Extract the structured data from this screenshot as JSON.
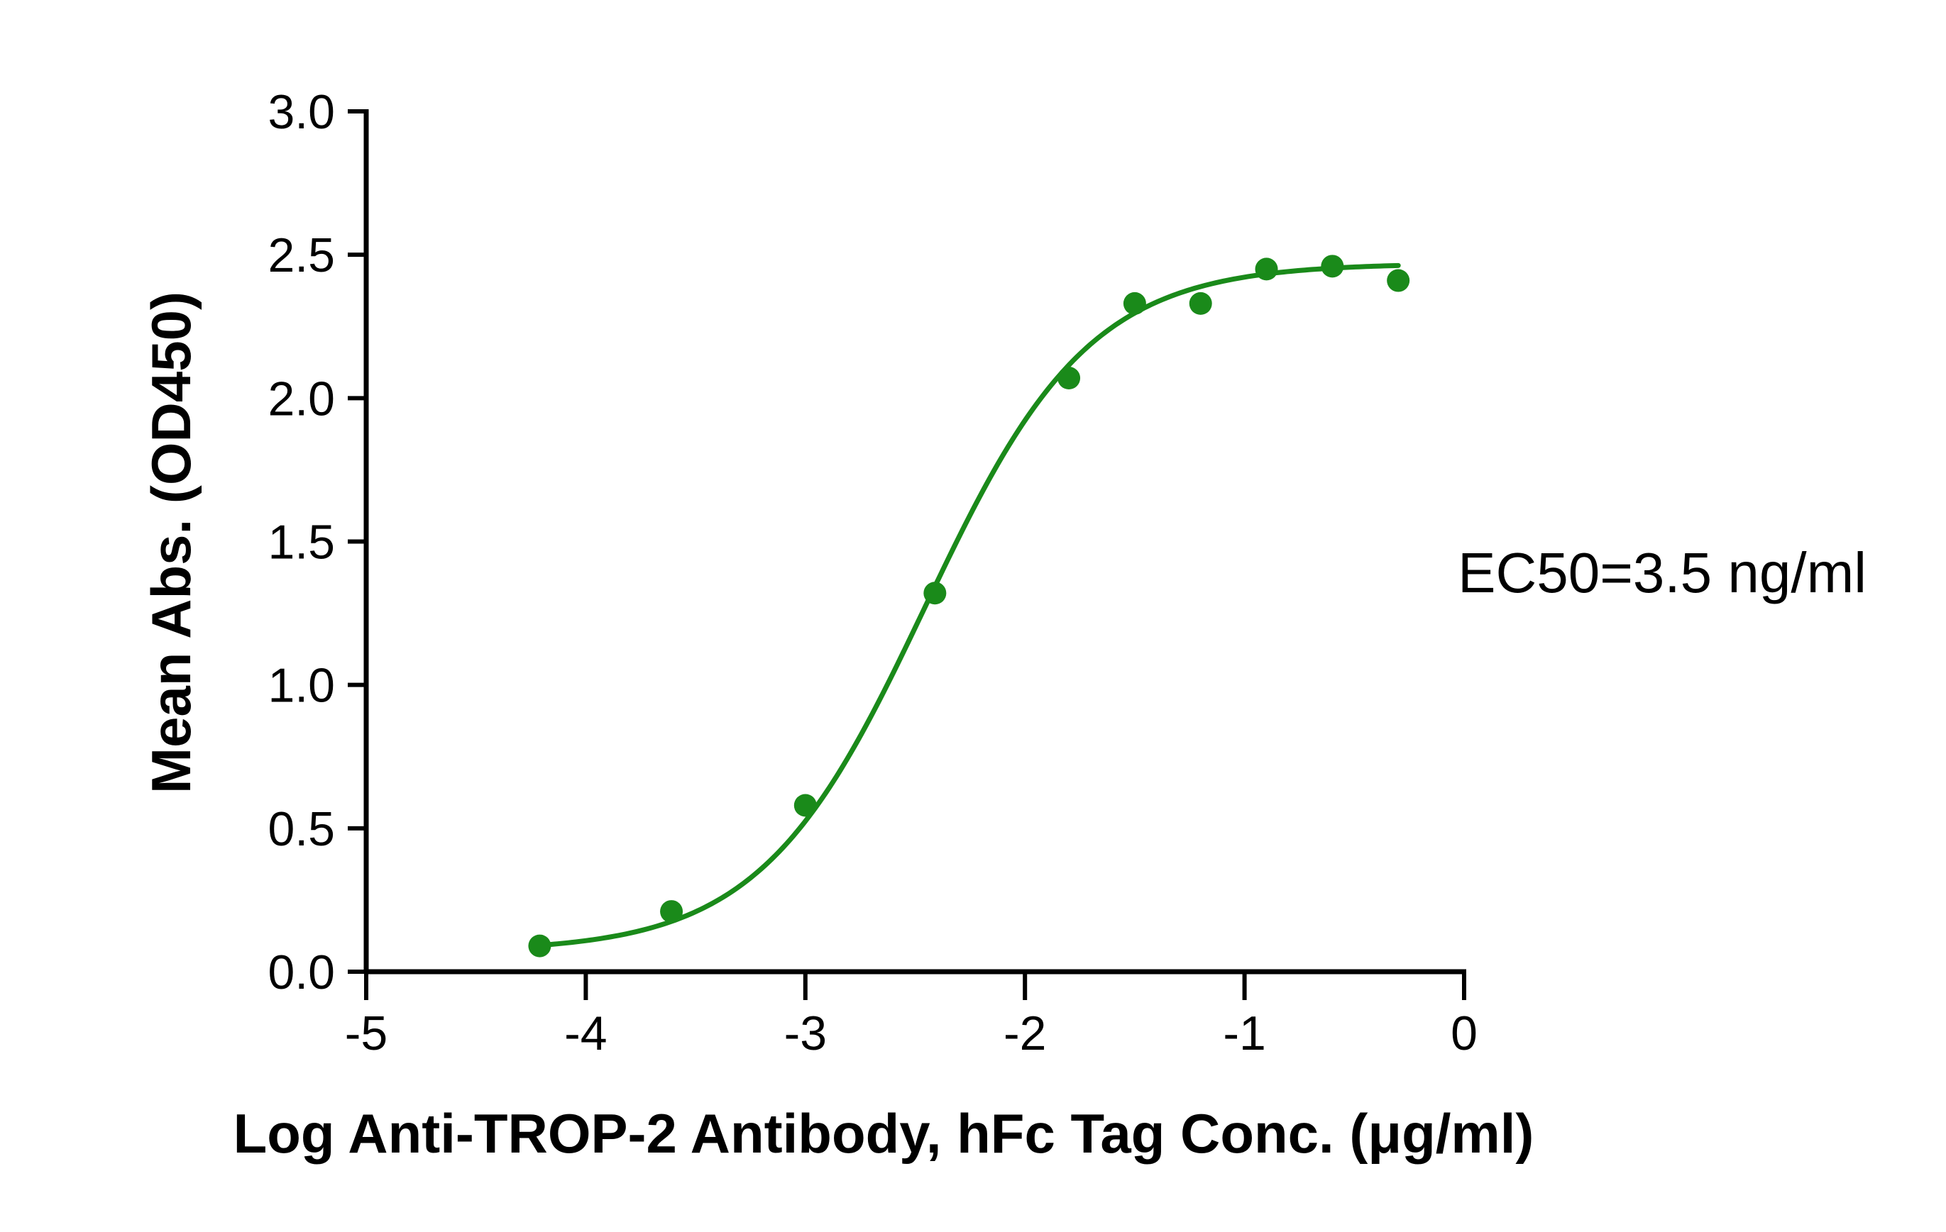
{
  "chart_data": {
    "type": "scatter",
    "xlabel": "Log  Anti-TROP-2 Antibody, hFc Tag Conc. (μg/ml)",
    "ylabel": "Mean Abs. (OD450)",
    "xlim": [
      -5,
      0
    ],
    "ylim": [
      0,
      3.0
    ],
    "x_ticks": [
      -5,
      -4,
      -3,
      -2,
      -1,
      0
    ],
    "x_tick_labels": [
      "-5",
      "-4",
      "-3",
      "-2",
      "-1",
      "0"
    ],
    "y_ticks": [
      0,
      0.5,
      1.0,
      1.5,
      2.0,
      2.5,
      3.0
    ],
    "y_tick_labels": [
      "0.0",
      "0.5",
      "1.0",
      "1.5",
      "2.0",
      "2.5",
      "3.0"
    ],
    "grid": false,
    "legend": "none",
    "color": "#1a8a1a",
    "series": [
      {
        "x": [
          -4.21,
          -3.61,
          -3.0,
          -2.41,
          -1.8,
          -1.5,
          -1.2,
          -0.9,
          -0.6,
          -0.3
        ],
        "y": [
          0.09,
          0.21,
          0.58,
          1.32,
          2.07,
          2.33,
          2.33,
          2.45,
          2.46,
          2.41
        ]
      }
    ],
    "fit": {
      "model": "4PL",
      "bottom": 0.07,
      "top": 2.47,
      "logEC50": -2.456,
      "hill": 1.16
    },
    "annotations": [
      {
        "text": "EC50=3.5 ng/ml"
      }
    ]
  }
}
